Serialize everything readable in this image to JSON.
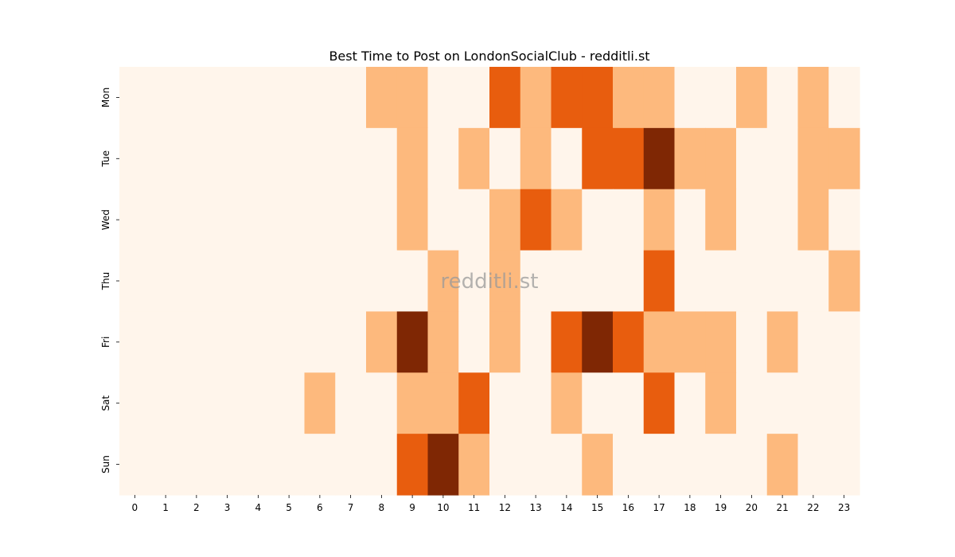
{
  "chart_data": {
    "type": "heatmap",
    "title": "Best Time to Post on LondonSocialClub - redditli.st",
    "watermark": "redditli.st",
    "xlabel": "",
    "ylabel": "",
    "x_labels": [
      "0",
      "1",
      "2",
      "3",
      "4",
      "5",
      "6",
      "7",
      "8",
      "9",
      "10",
      "11",
      "12",
      "13",
      "14",
      "15",
      "16",
      "17",
      "18",
      "19",
      "20",
      "21",
      "22",
      "23"
    ],
    "y_labels": [
      "Mon",
      "Tue",
      "Wed",
      "Thu",
      "Fri",
      "Sat",
      "Sun"
    ],
    "values": [
      [
        0,
        0,
        0,
        0,
        0,
        0,
        0,
        0,
        1,
        1,
        0,
        0,
        2,
        1,
        2,
        2,
        1,
        1,
        0,
        0,
        1,
        0,
        1,
        0
      ],
      [
        0,
        0,
        0,
        0,
        0,
        0,
        0,
        0,
        0,
        1,
        0,
        1,
        0,
        1,
        0,
        2,
        2,
        3,
        1,
        1,
        0,
        0,
        1,
        1
      ],
      [
        0,
        0,
        0,
        0,
        0,
        0,
        0,
        0,
        0,
        1,
        0,
        0,
        1,
        2,
        1,
        0,
        0,
        1,
        0,
        1,
        0,
        0,
        1,
        0
      ],
      [
        0,
        0,
        0,
        0,
        0,
        0,
        0,
        0,
        0,
        0,
        1,
        0,
        1,
        0,
        0,
        0,
        0,
        2,
        0,
        0,
        0,
        0,
        0,
        1
      ],
      [
        0,
        0,
        0,
        0,
        0,
        0,
        0,
        0,
        1,
        3,
        1,
        0,
        1,
        0,
        2,
        3,
        2,
        1,
        1,
        1,
        0,
        1,
        0,
        0
      ],
      [
        0,
        0,
        0,
        0,
        0,
        0,
        1,
        0,
        0,
        1,
        1,
        2,
        0,
        0,
        1,
        0,
        0,
        2,
        0,
        1,
        0,
        0,
        0,
        0
      ],
      [
        0,
        0,
        0,
        0,
        0,
        0,
        0,
        0,
        0,
        2,
        3,
        1,
        0,
        0,
        0,
        1,
        0,
        0,
        0,
        0,
        0,
        1,
        0,
        0
      ]
    ],
    "value_range": [
      0,
      3
    ],
    "colormap": "Oranges",
    "level_colors": [
      "#fff5eb",
      "#fdb97d",
      "#e85d0e",
      "#7f2704"
    ],
    "grid": false,
    "legend": "none"
  }
}
